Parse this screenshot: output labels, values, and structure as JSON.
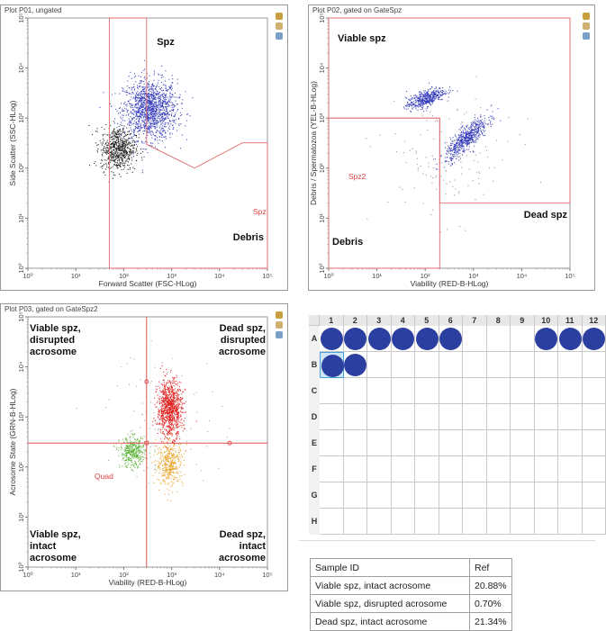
{
  "plots": [
    {
      "title": "Plot P01, ungated",
      "xlabel": "Forward Scatter (FSC-HLog)",
      "ylabel": "Side Scatter (SSC-HLog)",
      "gate_label": "Spz",
      "regions": [
        "Spz",
        "Debris"
      ]
    },
    {
      "title": "Plot P02, gated on GateSpz",
      "xlabel": "Viability (RED-B-HLog)",
      "ylabel": "Debris / Spermatozoa (YEL-B-HLog)",
      "gate_label": "Spz2",
      "regions": [
        "Viable spz",
        "Dead spz",
        "Debris"
      ]
    },
    {
      "title": "Plot P03, gated on GateSpz2",
      "xlabel": "Viability (RED-B-HLog)",
      "ylabel": "Acrosome State (GRN-B-HLog)",
      "gate_label": "Quad",
      "regions": [
        [
          "Viable spz,",
          "disrupted",
          "acrosome"
        ],
        [
          "Dead spz,",
          "disrupted",
          "acrosome"
        ],
        [
          "Viable spz,",
          "intact",
          "acrosome"
        ],
        [
          "Dead spz,",
          "intact",
          "acrosome"
        ]
      ]
    }
  ],
  "chart_data": [
    {
      "type": "scatter",
      "title": "Plot P01, ungated",
      "xlabel": "Forward Scatter (FSC-HLog)",
      "ylabel": "Side Scatter (SSC-HLog)",
      "xscale": "log",
      "yscale": "log",
      "xlim": [
        1,
        100000
      ],
      "ylim": [
        1,
        100000
      ],
      "x_ticks": [
        "10⁰",
        "10¹",
        "10²",
        "10³",
        "10⁴",
        "10⁵"
      ],
      "y_ticks": [
        "10⁰",
        "10¹",
        "10²",
        "10³",
        "10⁴",
        "10⁵"
      ],
      "clusters": [
        {
          "color": "#2a33b8",
          "center": [
            350,
            1500
          ],
          "spread_decades": [
            0.28,
            0.3
          ],
          "count": 1400
        },
        {
          "color": "#111111",
          "center": [
            75,
            250
          ],
          "spread_decades": [
            0.18,
            0.22
          ],
          "count": 650
        }
      ],
      "gate_polygon": [
        [
          50,
          100000
        ],
        [
          50,
          1
        ],
        [
          100000,
          1
        ],
        [
          100000,
          320
        ],
        [
          30000,
          320
        ],
        [
          3000,
          100
        ],
        [
          300,
          300
        ],
        [
          300,
          100000
        ]
      ],
      "gate_color": "#e06a6a"
    },
    {
      "type": "scatter",
      "title": "Plot P02, gated on GateSpz",
      "xlabel": "Viability (RED-B-HLog)",
      "ylabel": "Debris / Spermatozoa (YEL-B-HLog)",
      "xscale": "log",
      "yscale": "log",
      "xlim": [
        1,
        100000
      ],
      "ylim": [
        1,
        100000
      ],
      "x_ticks": [
        "10⁰",
        "10¹",
        "10²",
        "10³",
        "10⁴",
        "10⁵"
      ],
      "y_ticks": [
        "10⁰",
        "10¹",
        "10²",
        "10³",
        "10⁴",
        "10⁵"
      ],
      "clusters": [
        {
          "color": "#2a33b8",
          "center": [
            100,
            2500
          ],
          "spread_decades": [
            0.2,
            0.08
          ],
          "count": 450,
          "tilt": 0.35
        },
        {
          "color": "#2a33b8",
          "center": [
            700,
            400
          ],
          "spread_decades": [
            0.22,
            0.12
          ],
          "count": 600,
          "tilt": 0.8
        },
        {
          "color": "#888888",
          "center": [
            300,
            150
          ],
          "spread_decades": [
            0.7,
            0.6
          ],
          "count": 140
        }
      ],
      "gate_polygons": [
        [
          [
            1,
            100000
          ],
          [
            1,
            1000
          ],
          [
            200,
            1000
          ],
          [
            200,
            20
          ],
          [
            100000,
            20
          ],
          [
            100000,
            100000
          ]
        ],
        [
          [
            1,
            1000
          ],
          [
            200,
            1000
          ],
          [
            200,
            1
          ],
          [
            1,
            1
          ]
        ]
      ],
      "gate_color": "#e06a6a"
    },
    {
      "type": "scatter",
      "title": "Plot P03, gated on GateSpz2",
      "xlabel": "Viability (RED-B-HLog)",
      "ylabel": "Acrosome State (GRN-B-HLog)",
      "xscale": "log",
      "yscale": "log",
      "xlim": [
        1,
        100000
      ],
      "ylim": [
        1,
        100000
      ],
      "x_ticks": [
        "10⁰",
        "10¹",
        "10²",
        "10³",
        "10⁴",
        "10⁵"
      ],
      "y_ticks": [
        "10⁰",
        "10¹",
        "10²",
        "10³",
        "10⁴",
        "10⁵"
      ],
      "quadrant": [
        300,
        300
      ],
      "clusters": [
        {
          "color": "#e01515",
          "center": [
            900,
            1500
          ],
          "spread_decades": [
            0.13,
            0.28
          ],
          "count": 950
        },
        {
          "color": "#e8a020",
          "center": [
            900,
            120
          ],
          "spread_decades": [
            0.14,
            0.22
          ],
          "count": 400
        },
        {
          "color": "#55b030",
          "center": [
            150,
            200
          ],
          "spread_decades": [
            0.13,
            0.15
          ],
          "count": 380
        },
        {
          "color": "#999999",
          "center": [
            700,
            1000
          ],
          "spread_decades": [
            0.6,
            0.7
          ],
          "count": 100
        }
      ],
      "gate_color": "#e05050"
    }
  ],
  "plate": {
    "columns": [
      "1",
      "2",
      "3",
      "4",
      "5",
      "6",
      "7",
      "8",
      "9",
      "10",
      "11",
      "12"
    ],
    "rows": [
      "A",
      "B",
      "C",
      "D",
      "E",
      "F",
      "G",
      "H"
    ],
    "filled": {
      "A": [
        1,
        2,
        3,
        4,
        5,
        6,
        10,
        11,
        12
      ],
      "B": [
        1,
        2
      ]
    },
    "selected": [
      "B",
      1
    ],
    "well_color": "#2b3fa1"
  },
  "stats": {
    "header": [
      "Sample ID",
      "Ref"
    ],
    "rows": [
      [
        "Viable spz, intact acrosome",
        "20.88%"
      ],
      [
        "Viable spz, disrupted acrosome",
        "0.70%"
      ],
      [
        "Dead spz, intact acrosome",
        "21.34%"
      ]
    ]
  }
}
